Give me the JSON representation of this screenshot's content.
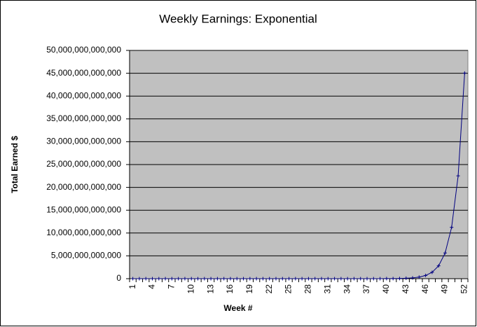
{
  "chart_data": {
    "type": "line",
    "title": "Weekly Earnings: Exponential",
    "x_label": "Week #",
    "y_label": "Total Earned $",
    "categories": [
      "1",
      null,
      null,
      "4",
      null,
      null,
      "7",
      null,
      null,
      "10",
      null,
      null,
      "13",
      null,
      null,
      "16",
      null,
      null,
      "19",
      null,
      null,
      "22",
      null,
      null,
      "25",
      null,
      null,
      "28",
      null,
      null,
      "31",
      null,
      null,
      "34",
      null,
      null,
      "37",
      null,
      null,
      "40",
      null,
      null,
      "43",
      null,
      null,
      "46",
      null,
      null,
      "49",
      null,
      null,
      "52"
    ],
    "series": [
      {
        "name": "Total Earned $",
        "color": "#000080",
        "values": [
          0.01,
          0.03,
          0.07,
          0.15,
          0.31,
          0.63,
          1.27,
          2.55,
          5.11,
          10.23,
          20.47,
          40.95,
          81.91,
          163.83,
          327.67,
          655.35,
          1310.71,
          2621.43,
          5242.87,
          10485.75,
          20971.51,
          41943.03,
          83886.07,
          167772.15,
          335544.31,
          671088.63,
          1342177.27,
          2684354.55,
          5368709.11,
          10737418.23,
          21474836.47,
          42949672.95,
          85899345.91,
          171798691.83,
          343597383.67,
          687194767.35,
          1374389534.71,
          2748779069.43,
          5497558138.87,
          10995116277.75,
          21990232555.51,
          43980465111.03,
          87960930222.07,
          175921860444.15,
          351843720888.31,
          703687441776.63,
          1407374883553.27,
          2814749767106.55,
          5629499534213.11,
          11258999068426.23,
          22517998136852.47,
          45035996273704.95
        ]
      }
    ],
    "ylim": [
      0,
      50000000000000
    ],
    "yticks": [
      0,
      {
        "value": 5000000000000,
        "label": "5,000,000,000,000"
      },
      {
        "value": 10000000000000,
        "label": "10,000,000,000,000"
      },
      {
        "value": 15000000000000,
        "label": "15,000,000,000,000"
      },
      {
        "value": 20000000000000,
        "label": "20,000,000,000,000"
      },
      {
        "value": 25000000000000,
        "label": "25,000,000,000,000"
      },
      {
        "value": 30000000000000,
        "label": "30,000,000,000,000"
      },
      {
        "value": 35000000000000,
        "label": "35,000,000,000,000"
      },
      {
        "value": 40000000000000,
        "label": "40,000,000,000,000"
      },
      {
        "value": 45000000000000,
        "label": "45,000,000,000,000"
      },
      {
        "value": 50000000000000,
        "label": "50,000,000,000,000"
      }
    ],
    "grid": true,
    "plot_background": "#c0c0c0"
  }
}
